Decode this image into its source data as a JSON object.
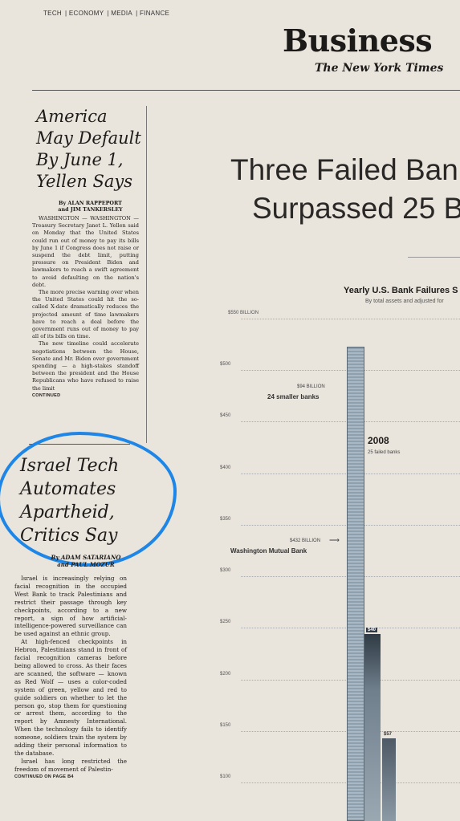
{
  "header": {
    "sections": [
      "TECH",
      "ECONOMY",
      "MEDIA",
      "FINANCE"
    ],
    "masthead": "Business",
    "paper": "The New York Times"
  },
  "story1": {
    "headline": [
      "America",
      "May Default",
      "By June 1,",
      "Yellen Says"
    ],
    "byline": [
      "By ALAN RAPPEPORT",
      "and JIM TANKERSLEY"
    ],
    "paragraphs": [
      "WASHINGTON — WASHINGTON — Treasury Secretary Janet L. Yellen said on Monday that the United States could run out of money to pay its bills by June 1 if Congress does not raise or suspend the debt limit, putting pressure on President Biden and lawmakers to reach a swift agreement to avoid defaulting on the nation's debt.",
      "The more precise warning over when the United States could hit the so-called X-date dramatically reduces the projected amount of time lawmakers have to reach a deal before the government runs out of money to pay all of its bills on time.",
      "The new timeline could accelerate negotiations between the House, Senate and Mr. Biden over government spending — a high-stakes standoff between the president and the House Republicans who have refused to raise the limit"
    ],
    "continued": "CONTINUED"
  },
  "story2": {
    "headline": [
      "Israel Tech",
      "Automates",
      "Apartheid,",
      "Critics Say"
    ],
    "byline": [
      "By ADAM SATARIANO",
      "and PAUL MOZUR"
    ],
    "paragraphs": [
      "Israel is increasingly relying on facial recognition in the occupied West Bank to track Palestinians and restrict their passage through key checkpoints, according to a new report, a sign of how artificial-intelligence-powered surveillance can be used against an ethnic group.",
      "At high-fenced checkpoints in Hebron, Palestinians stand in front of facial recognition cameras before being allowed to cross. As their faces are scanned, the software — known as Red Wolf — uses a color-coded system of green, yellow and red to guide soldiers on whether to let the person go, stop them for questioning or arrest them, according to the report by Amnesty International. When the technology fails to identify someone, soldiers train the system by adding their personal information to the database.",
      "Israel has long restricted the freedom of movement of Palestin-"
    ],
    "continued": "CONTINUED ON PAGE B4"
  },
  "story3": {
    "headline": [
      "Three Failed Ban",
      "Surpassed 25 B"
    ]
  },
  "chart_data": {
    "type": "bar",
    "title": "Yearly U.S. Bank Failures S",
    "subtitle": "By total assets and adjusted for",
    "ticks": [
      "$550 BILLION",
      "$500",
      "$450",
      "$400",
      "$350",
      "$300",
      "$250",
      "$200",
      "$150",
      "$100"
    ],
    "tick_values": [
      550,
      500,
      450,
      400,
      350,
      300,
      250,
      200,
      150,
      100
    ],
    "annotations": {
      "small_value": "$94 BILLION",
      "small_label": "24 smaller banks",
      "wamu_value": "$432 BILLION",
      "wamu_label": "Washington Mutual Bank",
      "year": "2008",
      "year_sub": "25 failed banks"
    },
    "bar_labels": [
      "$40",
      "$57"
    ]
  },
  "colors": {
    "paper": "#e9e4dc",
    "circle": "#1e86e6",
    "bar": "#8ea0ae"
  }
}
